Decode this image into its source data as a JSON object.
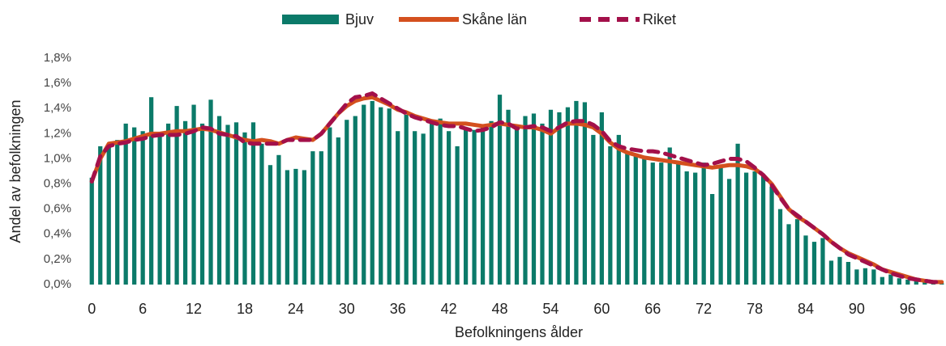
{
  "chart_data": {
    "type": "bar",
    "x_label": "Befolkningens ålder",
    "y_label": "Andel av befolkningen",
    "categories": [
      0,
      null,
      null,
      null,
      null,
      null,
      6,
      null,
      null,
      null,
      null,
      null,
      12,
      null,
      null,
      null,
      null,
      null,
      18,
      null,
      null,
      null,
      null,
      null,
      24,
      null,
      null,
      null,
      null,
      null,
      30,
      null,
      null,
      null,
      null,
      null,
      36,
      null,
      null,
      null,
      null,
      null,
      42,
      null,
      null,
      null,
      null,
      null,
      48,
      null,
      null,
      null,
      null,
      null,
      54,
      null,
      null,
      null,
      null,
      null,
      60,
      null,
      null,
      null,
      null,
      null,
      66,
      null,
      null,
      null,
      null,
      null,
      72,
      null,
      null,
      null,
      null,
      null,
      78,
      null,
      null,
      null,
      null,
      null,
      84,
      null,
      null,
      null,
      null,
      null,
      90,
      null,
      null,
      null,
      null,
      null,
      96,
      null,
      null,
      null,
      null
    ],
    "series": [
      {
        "name": "Bjuv",
        "type": "bar",
        "color": "#0b7a69",
        "values": [
          0.85,
          1.1,
          1.12,
          1.15,
          1.28,
          1.25,
          1.22,
          1.49,
          1.18,
          1.28,
          1.42,
          1.3,
          1.43,
          1.28,
          1.47,
          1.34,
          1.27,
          1.29,
          1.21,
          1.29,
          1.12,
          0.95,
          1.03,
          0.91,
          0.92,
          0.91,
          1.06,
          1.06,
          1.25,
          1.17,
          1.31,
          1.34,
          1.43,
          1.46,
          1.41,
          1.4,
          1.22,
          1.35,
          1.22,
          1.2,
          1.28,
          1.32,
          1.22,
          1.1,
          1.25,
          1.23,
          1.27,
          1.3,
          1.51,
          1.39,
          1.25,
          1.34,
          1.36,
          1.28,
          1.39,
          1.37,
          1.41,
          1.46,
          1.45,
          1.19,
          1.37,
          1.1,
          1.19,
          1.05,
          1.04,
          1.02,
          0.97,
          0.97,
          1.09,
          0.96,
          0.9,
          0.89,
          0.97,
          0.72,
          0.95,
          0.84,
          1.12,
          0.89,
          0.9,
          0.87,
          0.78,
          0.6,
          0.48,
          0.52,
          0.39,
          0.34,
          0.37,
          0.19,
          0.22,
          0.18,
          0.12,
          0.13,
          0.12,
          0.06,
          0.08,
          0.05,
          0.04,
          0.03,
          0.02,
          0.01,
          0.01
        ]
      },
      {
        "name": "Skåne län",
        "type": "line",
        "color": "#d4501e",
        "values": [
          0.82,
          1.0,
          1.12,
          1.13,
          1.14,
          1.16,
          1.18,
          1.2,
          1.2,
          1.21,
          1.22,
          1.22,
          1.23,
          1.24,
          1.23,
          1.21,
          1.19,
          1.17,
          1.15,
          1.14,
          1.15,
          1.14,
          1.12,
          1.15,
          1.17,
          1.16,
          1.15,
          1.2,
          1.28,
          1.36,
          1.42,
          1.46,
          1.48,
          1.49,
          1.46,
          1.43,
          1.39,
          1.37,
          1.34,
          1.32,
          1.3,
          1.29,
          1.28,
          1.28,
          1.28,
          1.27,
          1.26,
          1.27,
          1.28,
          1.27,
          1.26,
          1.25,
          1.25,
          1.23,
          1.2,
          1.25,
          1.28,
          1.28,
          1.27,
          1.25,
          1.2,
          1.13,
          1.08,
          1.05,
          1.03,
          1.01,
          1.0,
          0.99,
          0.98,
          0.97,
          0.96,
          0.95,
          0.94,
          0.93,
          0.94,
          0.95,
          0.95,
          0.94,
          0.92,
          0.87,
          0.8,
          0.7,
          0.6,
          0.54,
          0.5,
          0.45,
          0.4,
          0.34,
          0.29,
          0.25,
          0.22,
          0.19,
          0.16,
          0.12,
          0.1,
          0.08,
          0.06,
          0.04,
          0.03,
          0.02,
          0.02
        ]
      },
      {
        "name": "Riket",
        "type": "dashed",
        "color": "#a3104a",
        "values": [
          0.82,
          1.02,
          1.1,
          1.12,
          1.13,
          1.15,
          1.16,
          1.18,
          1.19,
          1.19,
          1.19,
          1.2,
          1.22,
          1.25,
          1.24,
          1.2,
          1.19,
          1.18,
          1.13,
          1.12,
          1.12,
          1.12,
          1.12,
          1.15,
          1.15,
          1.15,
          1.15,
          1.2,
          1.28,
          1.36,
          1.44,
          1.49,
          1.5,
          1.52,
          1.48,
          1.44,
          1.4,
          1.36,
          1.33,
          1.31,
          1.29,
          1.27,
          1.26,
          1.26,
          1.24,
          1.22,
          1.23,
          1.25,
          1.29,
          1.28,
          1.24,
          1.25,
          1.26,
          1.25,
          1.22,
          1.25,
          1.29,
          1.3,
          1.3,
          1.27,
          1.22,
          1.14,
          1.1,
          1.08,
          1.07,
          1.06,
          1.06,
          1.05,
          1.03,
          1.01,
          0.99,
          0.97,
          0.95,
          0.96,
          0.98,
          1.0,
          1.0,
          0.98,
          0.93,
          0.87,
          0.79,
          0.69,
          0.6,
          0.55,
          0.5,
          0.45,
          0.4,
          0.34,
          0.29,
          0.24,
          0.21,
          0.18,
          0.15,
          0.12,
          0.09,
          0.07,
          0.05,
          0.04,
          0.03,
          0.02,
          0.02
        ]
      }
    ],
    "ylim": [
      0,
      1.8
    ],
    "yticks": [
      {
        "value": 0,
        "label": "0,0%"
      },
      {
        "value": 0.2,
        "label": "0,2%"
      },
      {
        "value": 0.4,
        "label": "0,4%"
      },
      {
        "value": 0.6,
        "label": "0,6%"
      },
      {
        "value": 0.8,
        "label": "0,8%"
      },
      {
        "value": 1.0,
        "label": "1,0%"
      },
      {
        "value": 1.2,
        "label": "1,2%"
      },
      {
        "value": 1.4,
        "label": "1,4%"
      },
      {
        "value": 1.6,
        "label": "1,6%"
      },
      {
        "value": 1.8,
        "label": "1,8%"
      }
    ],
    "grid": false,
    "legend": "top"
  }
}
